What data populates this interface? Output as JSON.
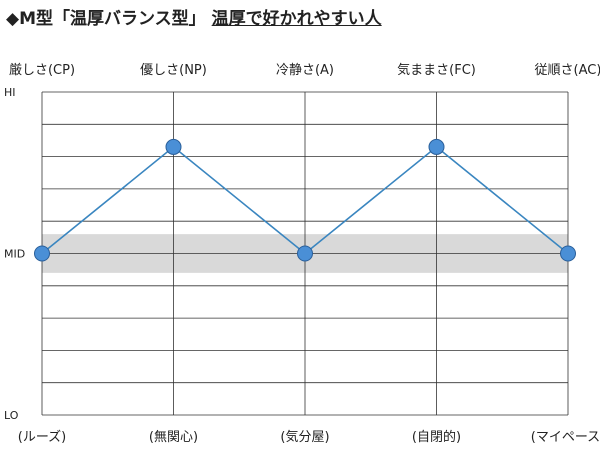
{
  "title": "◆M型「温厚バランス型」",
  "subtitle": "温厚で好かれやすい人",
  "chart_data": {
    "type": "line",
    "categories": [
      "厳しさ(CP)",
      "優しさ(NP)",
      "冷静さ(A)",
      "気ままさ(FC)",
      "従順さ(AC)"
    ],
    "bottom_labels": [
      "(ルーズ)",
      "(無関心)",
      "(気分屋)",
      "(自閉的)",
      "(マイペース)"
    ],
    "y_ticks": [
      "HI",
      "MID",
      "LO"
    ],
    "ylim": [
      0,
      10
    ],
    "tick_values": [
      10,
      5,
      0
    ],
    "band": [
      4.4,
      5.6
    ],
    "series": [
      {
        "values": [
          5,
          8.3,
          5,
          8.3,
          5
        ]
      }
    ],
    "colors": {
      "line": "#3a86c0",
      "marker": "#4a8fd6",
      "marker_stroke": "#2a5f9a",
      "band": "#d9d9d9",
      "grid": "#333333"
    }
  }
}
